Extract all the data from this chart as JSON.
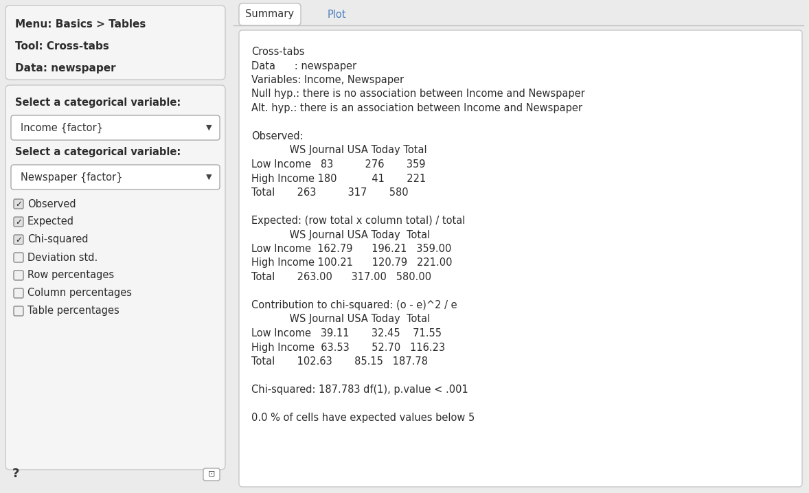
{
  "bg_color": "#ebebeb",
  "white": "#ffffff",
  "border_color": "#c8c8c8",
  "text_dark": "#2c2c2c",
  "text_blue": "#4a7fc1",
  "left_panel": {
    "menu_text": [
      "Menu: Basics > Tables",
      "Tool: Cross-tabs",
      "Data: newspaper"
    ],
    "label1": "Select a categorical variable:",
    "dropdown1": "Income {factor}",
    "label2": "Select a categorical variable:",
    "dropdown2": "Newspaper {factor}",
    "checkboxes": [
      {
        "label": "Observed",
        "checked": true
      },
      {
        "label": "Expected",
        "checked": true
      },
      {
        "label": "Chi-squared",
        "checked": true
      },
      {
        "label": "Deviation std.",
        "checked": false
      },
      {
        "label": "Row percentages",
        "checked": false
      },
      {
        "label": "Column percentages",
        "checked": false
      },
      {
        "label": "Table percentages",
        "checked": false
      }
    ]
  },
  "right_panel": {
    "tabs": [
      "Summary",
      "Plot"
    ],
    "content_lines": [
      "Cross-tabs",
      "Data      : newspaper",
      "Variables: Income, Newspaper",
      "Null hyp.: there is no association between Income and Newspaper",
      "Alt. hyp.: there is an association between Income and Newspaper",
      "",
      "Observed:",
      "            WS Journal USA Today Total",
      "Low Income   83          276       359",
      "High Income 180           41       221",
      "Total       263          317       580",
      "",
      "Expected: (row total x column total) / total",
      "            WS Journal USA Today  Total",
      "Low Income  162.79      196.21   359.00",
      "High Income 100.21      120.79   221.00",
      "Total       263.00      317.00   580.00",
      "",
      "Contribution to chi-squared: (o - e)^2 / e",
      "            WS Journal USA Today  Total",
      "Low Income   39.11       32.45    71.55",
      "High Income  63.53       52.70   116.23",
      "Total       102.63       85.15   187.78",
      "",
      "Chi-squared: 187.783 df(1), p.value < .001",
      "",
      "0.0 % of cells have expected values below 5"
    ]
  }
}
